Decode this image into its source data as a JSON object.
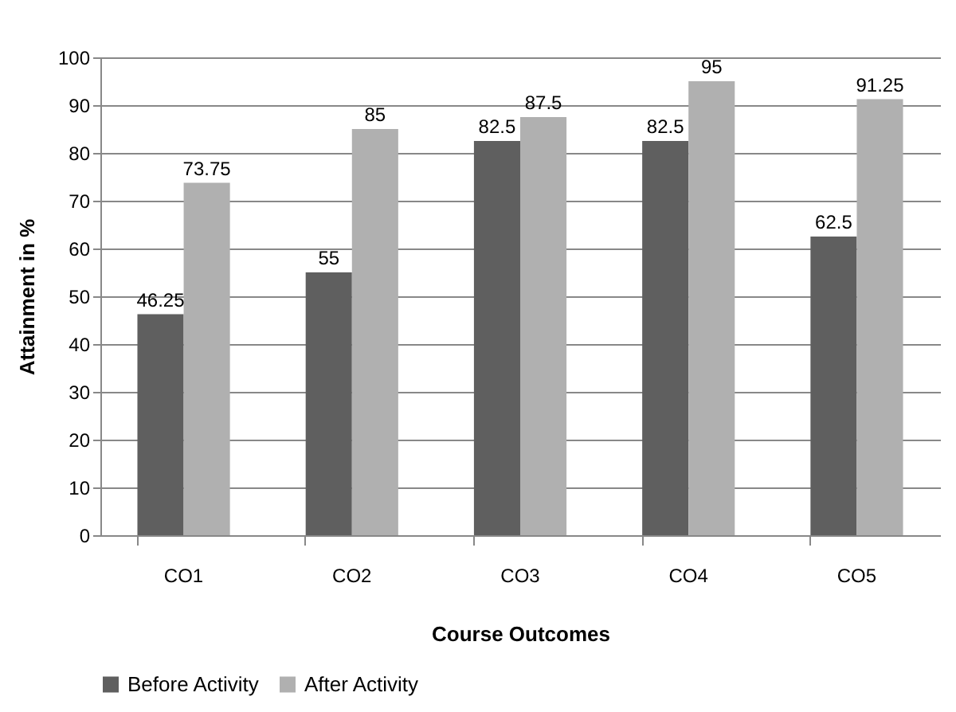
{
  "chart_data": {
    "type": "bar",
    "xlabel": "Course Outcomes",
    "ylabel": "Attainment in %",
    "categories": [
      "CO1",
      "CO2",
      "CO3",
      "CO4",
      "CO5"
    ],
    "series": [
      {
        "name": "Before Activity",
        "color": "#5f5f5f",
        "values": [
          46.25,
          55,
          82.5,
          82.5,
          62.5
        ]
      },
      {
        "name": "After Activity",
        "color": "#b0b0b0",
        "values": [
          73.75,
          85,
          87.5,
          95,
          91.25
        ]
      }
    ],
    "ylim": [
      0,
      100
    ],
    "yticks": [
      0,
      10,
      20,
      30,
      40,
      50,
      60,
      70,
      80,
      90,
      100
    ],
    "grid": "y",
    "legend": "bottom",
    "data_labels": true
  }
}
